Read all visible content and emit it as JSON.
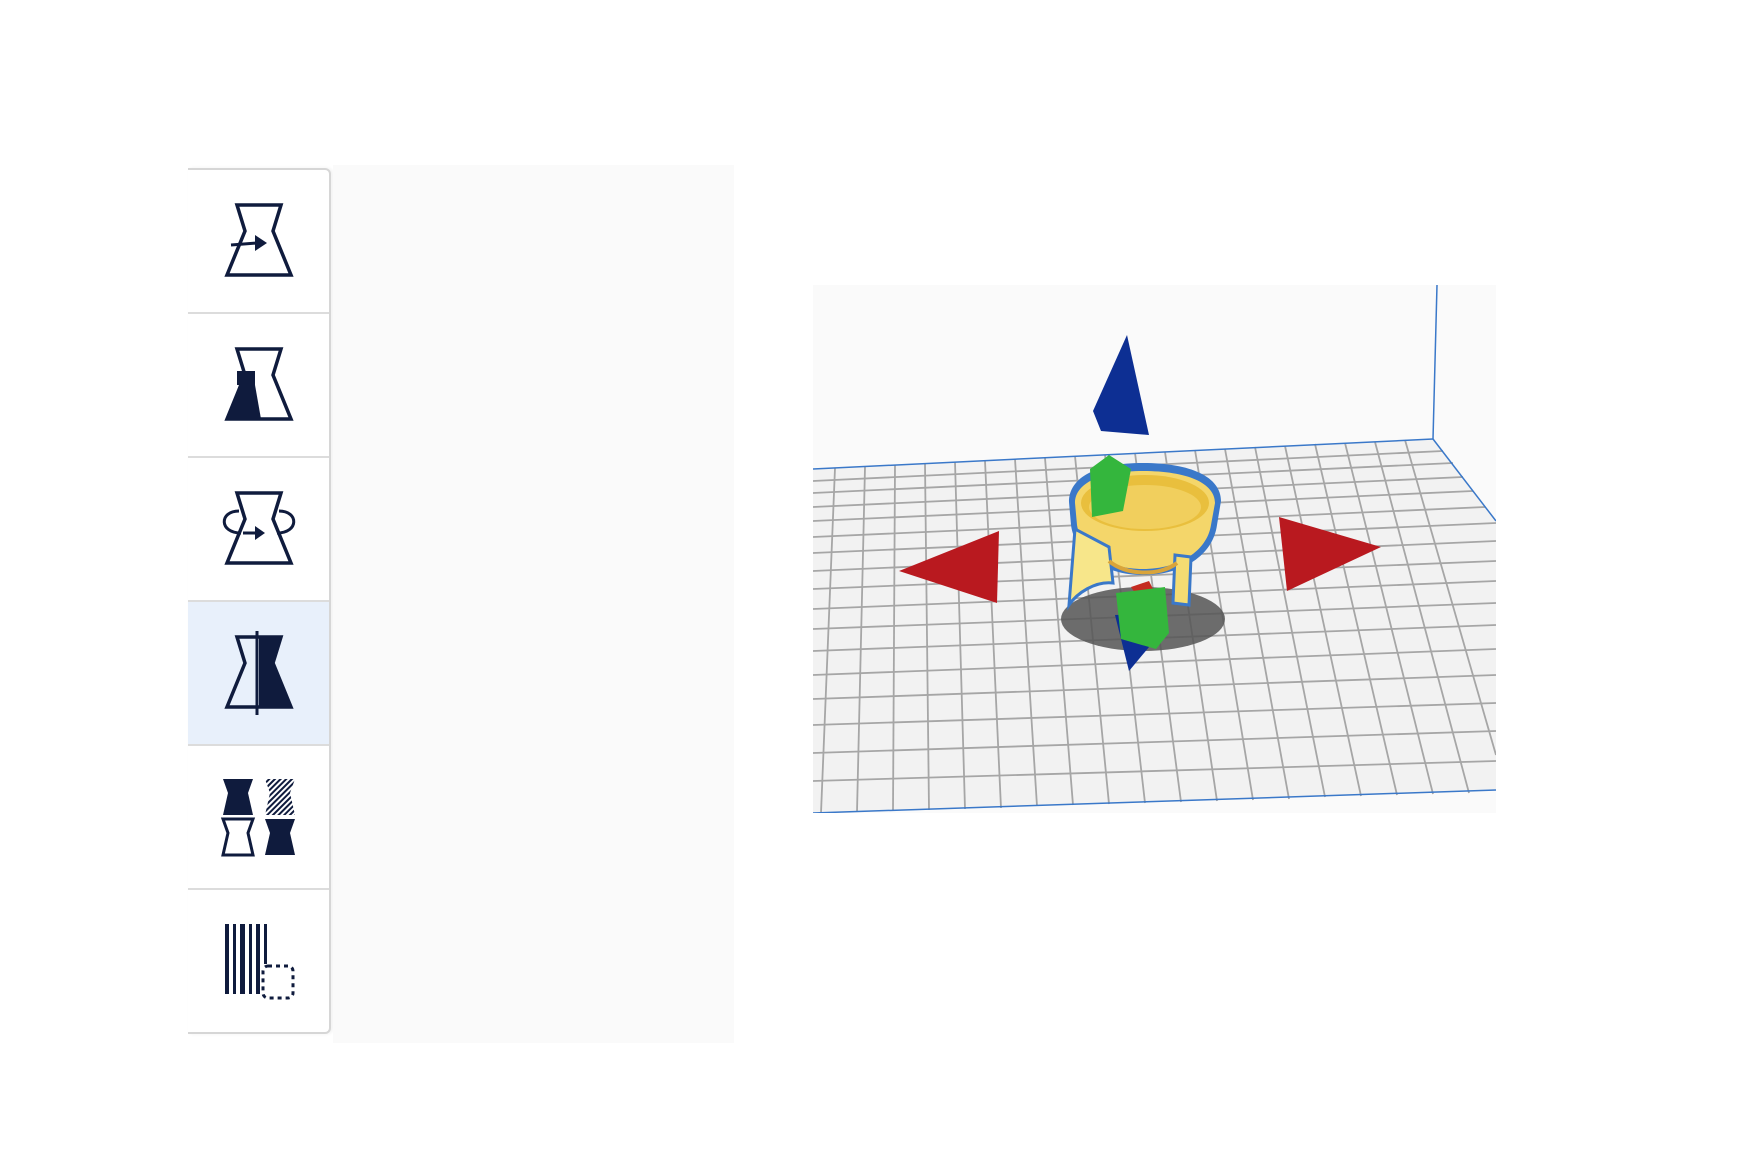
{
  "toolbar": {
    "tools": [
      {
        "name": "mesh-type-normal",
        "icon": "normal-model-icon",
        "active": false
      },
      {
        "name": "mesh-type-support",
        "icon": "support-mesh-icon",
        "active": false
      },
      {
        "name": "mesh-type-infill",
        "icon": "infill-mesh-icon",
        "active": false
      },
      {
        "name": "mesh-type-cutting",
        "icon": "cutting-mesh-icon",
        "active": true
      },
      {
        "name": "mesh-type-overlap",
        "icon": "overlap-settings-icon",
        "active": false
      },
      {
        "name": "mesh-type-blocker",
        "icon": "support-blocker-icon",
        "active": false
      }
    ]
  },
  "viewport": {
    "model": "bowl-with-legs",
    "gizmo": "move-arrows",
    "colors": {
      "grid_bg": "#f2f2f2",
      "grid_line": "#a6a6a6",
      "model": "#f4d66a",
      "outline": "#3a78c9",
      "x_arrow": "#b9191f",
      "y_arrow": "#0d2f93",
      "z_handle": "#34b63d",
      "active_bg": "#e8f0fb",
      "icon": "#0f1b3d"
    }
  }
}
